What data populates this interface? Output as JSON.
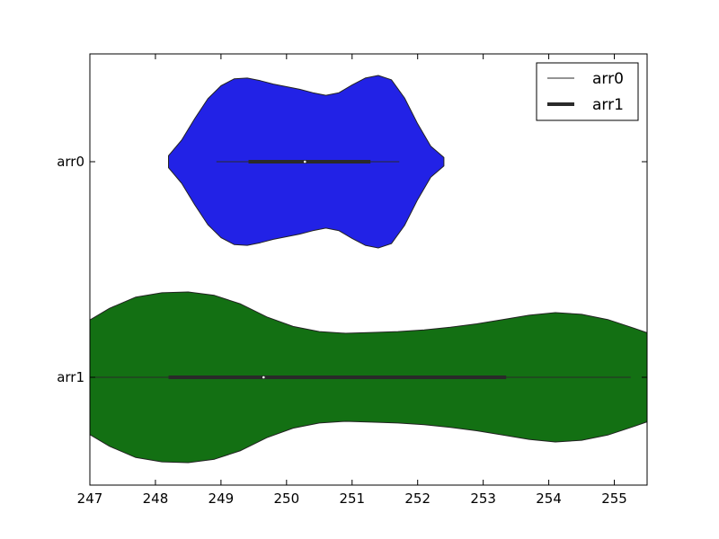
{
  "chart_data": {
    "type": "violin",
    "orientation": "horizontal",
    "title": "",
    "xlabel": "",
    "ylabel": "",
    "xlim": [
      247,
      255.5
    ],
    "x_ticks": [
      247,
      248,
      249,
      250,
      251,
      252,
      253,
      254,
      255
    ],
    "categories": [
      "arr0",
      "arr1"
    ],
    "grid": false,
    "legend": {
      "position": "top-right",
      "entries": [
        {
          "label": "arr0",
          "style": "thin line"
        },
        {
          "label": "arr1",
          "style": "thick line"
        }
      ]
    },
    "series": [
      {
        "name": "arr0",
        "color": "#2222e6",
        "range": [
          248.2,
          252.4
        ],
        "whisker": [
          248.93,
          251.72
        ],
        "quartiles": [
          249.42,
          251.28
        ],
        "median": 250.28,
        "density_y": [
          248.2,
          248.4,
          248.6,
          248.8,
          249.0,
          249.2,
          249.4,
          249.6,
          249.8,
          250.0,
          250.2,
          250.4,
          250.6,
          250.8,
          251.0,
          251.2,
          251.4,
          251.6,
          251.8,
          252.0,
          252.2,
          252.4
        ],
        "density_w": [
          0.07,
          0.25,
          0.5,
          0.73,
          0.88,
          0.96,
          0.97,
          0.94,
          0.9,
          0.87,
          0.84,
          0.8,
          0.77,
          0.8,
          0.89,
          0.97,
          1.0,
          0.95,
          0.74,
          0.44,
          0.18,
          0.05
        ]
      },
      {
        "name": "arr1",
        "color": "#137013",
        "range": [
          246.9,
          255.6
        ],
        "whisker": [
          247.0,
          255.25
        ],
        "quartiles": [
          248.2,
          253.35
        ],
        "median": 249.65,
        "density_y": [
          246.9,
          247.3,
          247.7,
          248.1,
          248.5,
          248.9,
          249.3,
          249.7,
          250.1,
          250.5,
          250.9,
          251.3,
          251.7,
          252.1,
          252.5,
          252.9,
          253.3,
          253.7,
          254.1,
          254.5,
          254.9,
          255.3,
          255.6
        ],
        "density_w": [
          0.62,
          0.8,
          0.93,
          0.98,
          0.99,
          0.95,
          0.85,
          0.7,
          0.59,
          0.53,
          0.51,
          0.52,
          0.53,
          0.55,
          0.58,
          0.62,
          0.67,
          0.72,
          0.75,
          0.73,
          0.67,
          0.57,
          0.49
        ]
      }
    ]
  }
}
